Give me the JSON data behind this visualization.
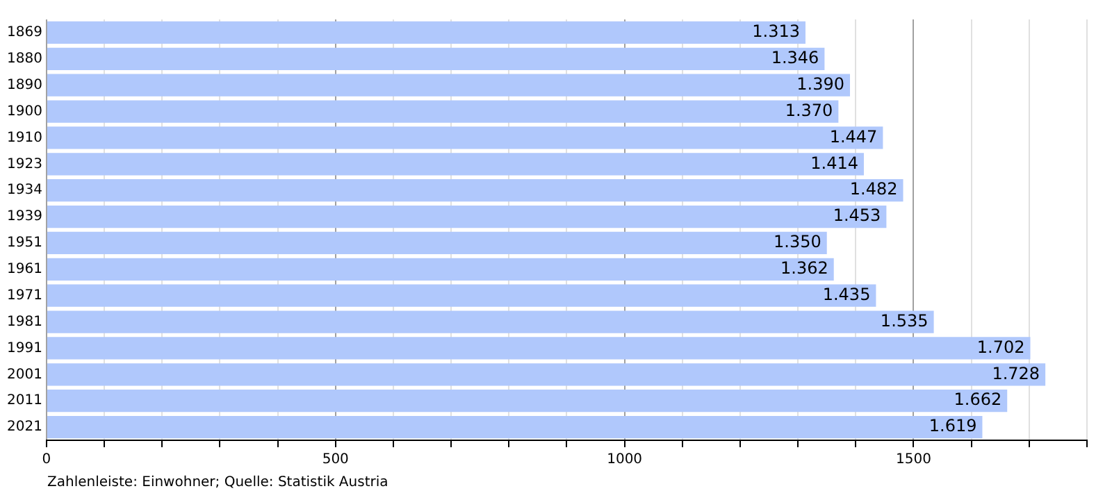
{
  "chart_data": {
    "type": "bar",
    "orientation": "horizontal",
    "categories": [
      "1869",
      "1880",
      "1890",
      "1900",
      "1910",
      "1923",
      "1934",
      "1939",
      "1951",
      "1961",
      "1971",
      "1981",
      "1991",
      "2001",
      "2011",
      "2021"
    ],
    "values": [
      1313,
      1346,
      1390,
      1370,
      1447,
      1414,
      1482,
      1453,
      1350,
      1362,
      1435,
      1535,
      1702,
      1728,
      1662,
      1619
    ],
    "value_labels": [
      "1.313",
      "1.346",
      "1.390",
      "1.370",
      "1.447",
      "1.414",
      "1.482",
      "1.453",
      "1.350",
      "1.362",
      "1.435",
      "1.535",
      "1.702",
      "1.728",
      "1.662",
      "1.619"
    ],
    "color": "#b0c8fc",
    "xlim": [
      0,
      1800
    ],
    "xticks": [
      0,
      {
        "value": 100,
        "label": null
      },
      {
        "value": 200,
        "label": null
      },
      {
        "value": 300,
        "label": null
      },
      {
        "value": 400,
        "label": null
      },
      500,
      {
        "value": 600,
        "label": null
      },
      {
        "value": 700,
        "label": null
      },
      {
        "value": 800,
        "label": null
      },
      {
        "value": 900,
        "label": null
      },
      1000,
      {
        "value": 1100,
        "label": null
      },
      {
        "value": 1200,
        "label": null
      },
      {
        "value": 1300,
        "label": null
      },
      {
        "value": 1400,
        "label": null
      },
      1500,
      {
        "value": 1600,
        "label": null
      },
      {
        "value": 1700,
        "label": null
      },
      {
        "value": 1800,
        "label": null
      }
    ],
    "grid": "x",
    "annotations": [
      "Zahlenleiste: Einwohner; Quelle: Statistik Austria"
    ]
  }
}
